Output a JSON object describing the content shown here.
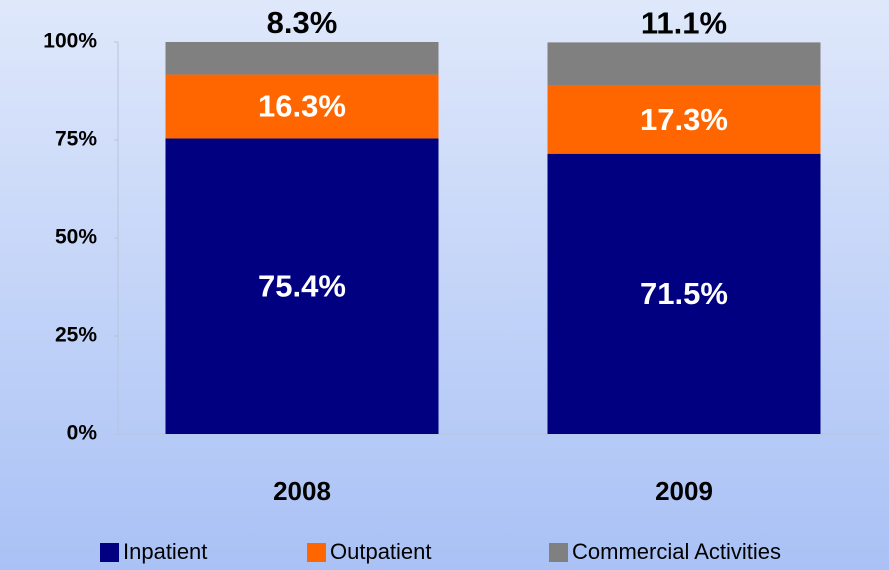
{
  "chart_data": {
    "type": "stacked_bar",
    "categories": [
      "2008",
      "2009"
    ],
    "series": [
      {
        "name": "Inpatient",
        "color": "#000080",
        "values": [
          75.4,
          71.5
        ],
        "value_labels": [
          "75.4%",
          "71.5%"
        ]
      },
      {
        "name": "Outpatient",
        "color": "#ff6600",
        "values": [
          16.3,
          17.3
        ],
        "value_labels": [
          "16.3%",
          "17.3%"
        ]
      },
      {
        "name": "Commercial Activities",
        "color": "#808080",
        "values": [
          8.3,
          11.1
        ],
        "value_labels": [
          "8.3%",
          "11.1%"
        ]
      }
    ],
    "ylim": [
      0,
      100
    ],
    "yticks": [
      {
        "value": 0,
        "label": "0%"
      },
      {
        "value": 25,
        "label": "25%"
      },
      {
        "value": 50,
        "label": "50%"
      },
      {
        "value": 75,
        "label": "75%"
      },
      {
        "value": 100,
        "label": "100%"
      }
    ],
    "legend": "bottom"
  }
}
